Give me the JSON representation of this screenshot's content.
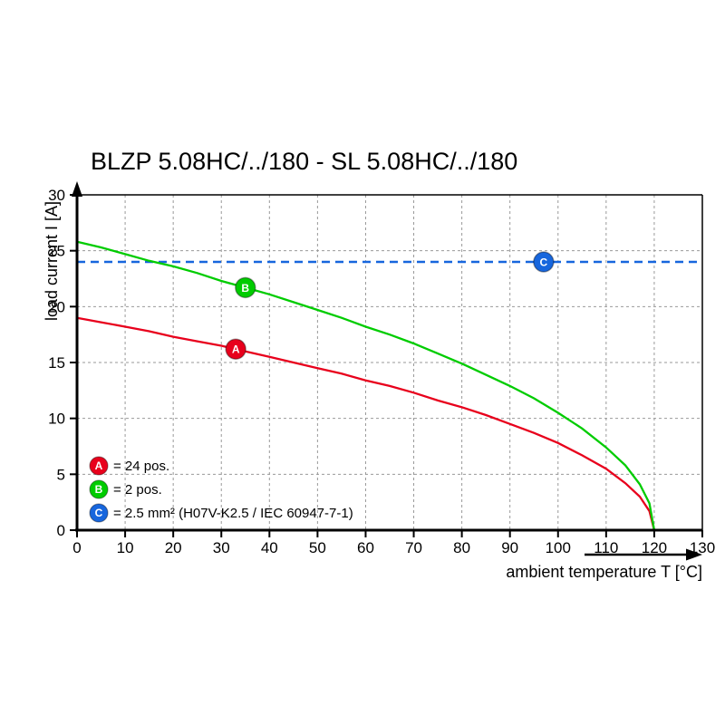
{
  "chart_data": {
    "type": "line",
    "title": "BLZP 5.08HC/../180 - SL 5.08HC/../180",
    "x_axis": {
      "label": "ambient temperature T [°C]",
      "min": 0,
      "max": 130,
      "ticks": [
        0,
        10,
        20,
        30,
        40,
        50,
        60,
        70,
        80,
        90,
        100,
        110,
        120,
        130
      ]
    },
    "y_axis": {
      "label": "load current I [A]",
      "min": 0,
      "max": 30,
      "ticks": [
        0,
        5,
        10,
        15,
        20,
        25,
        30
      ]
    },
    "grid": {
      "show": true,
      "style": "dashed"
    },
    "series": [
      {
        "id": "A",
        "name": "24 pos.",
        "color": "#e8001c",
        "points": [
          [
            0,
            19.0
          ],
          [
            5,
            18.6
          ],
          [
            10,
            18.2
          ],
          [
            15,
            17.8
          ],
          [
            20,
            17.3
          ],
          [
            25,
            16.9
          ],
          [
            30,
            16.5
          ],
          [
            35,
            16.0
          ],
          [
            40,
            15.5
          ],
          [
            45,
            15.0
          ],
          [
            50,
            14.5
          ],
          [
            55,
            14.0
          ],
          [
            60,
            13.4
          ],
          [
            65,
            12.9
          ],
          [
            70,
            12.3
          ],
          [
            75,
            11.6
          ],
          [
            80,
            11.0
          ],
          [
            85,
            10.3
          ],
          [
            90,
            9.5
          ],
          [
            95,
            8.7
          ],
          [
            100,
            7.8
          ],
          [
            105,
            6.7
          ],
          [
            110,
            5.5
          ],
          [
            114,
            4.2
          ],
          [
            117,
            3.0
          ],
          [
            119,
            1.7
          ],
          [
            120,
            0
          ]
        ]
      },
      {
        "id": "B",
        "name": "2 pos.",
        "color": "#00cc00",
        "points": [
          [
            0,
            25.8
          ],
          [
            5,
            25.3
          ],
          [
            10,
            24.7
          ],
          [
            15,
            24.1
          ],
          [
            20,
            23.6
          ],
          [
            25,
            23.0
          ],
          [
            30,
            22.3
          ],
          [
            35,
            21.7
          ],
          [
            40,
            21.1
          ],
          [
            45,
            20.4
          ],
          [
            50,
            19.7
          ],
          [
            55,
            19.0
          ],
          [
            60,
            18.2
          ],
          [
            65,
            17.5
          ],
          [
            70,
            16.7
          ],
          [
            75,
            15.8
          ],
          [
            80,
            14.9
          ],
          [
            85,
            13.9
          ],
          [
            90,
            12.9
          ],
          [
            95,
            11.8
          ],
          [
            100,
            10.5
          ],
          [
            105,
            9.1
          ],
          [
            110,
            7.4
          ],
          [
            114,
            5.8
          ],
          [
            117,
            4.1
          ],
          [
            119,
            2.4
          ],
          [
            120,
            0
          ]
        ]
      }
    ],
    "limit_line": {
      "value": 24,
      "color": "#1766dd",
      "style": "dashed"
    },
    "markers": [
      {
        "label": "A",
        "t": 33,
        "i": 16.2,
        "color": "#e8001c",
        "legend": "= 24 pos."
      },
      {
        "label": "B",
        "t": 35,
        "i": 21.7,
        "color": "#00cc00",
        "legend": "= 2 pos."
      },
      {
        "label": "C",
        "t": 97,
        "i": 24,
        "color": "#1766dd",
        "legend": "= 2.5 mm² (H07V-K2.5 / IEC 60947-7-1)"
      }
    ]
  }
}
